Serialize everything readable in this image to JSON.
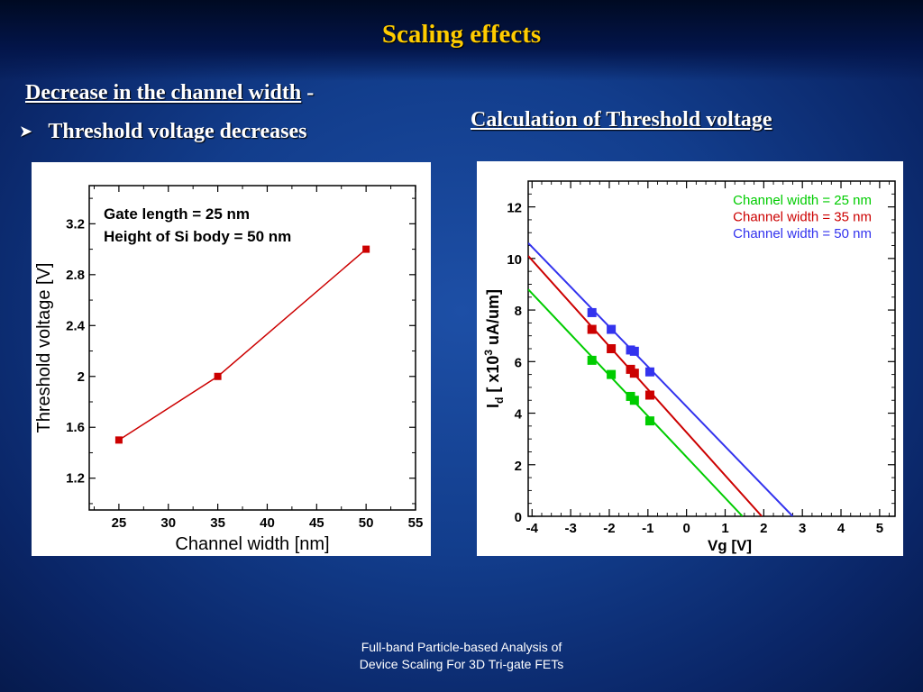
{
  "slide": {
    "title": "Scaling effects",
    "heading_left_underlined": "Decrease in the channel width",
    "heading_left_suffix": " -",
    "bullet_text": "Threshold voltage decreases",
    "heading_right": "Calculation of Threshold voltage",
    "footer_line1": "Full-band Particle-based Analysis of",
    "footer_line2": "Device Scaling For 3D Tri-gate FETs",
    "colors": {
      "background": "#123d8c",
      "title": "#ffcc00",
      "text": "#ffffff"
    }
  },
  "chart_data": [
    {
      "type": "line",
      "xlabel": "Channel width [nm]",
      "ylabel": "Threshold voltage [V]",
      "xlim": [
        22,
        55
      ],
      "ylim": [
        0.95,
        3.5
      ],
      "xticks": [
        25,
        30,
        35,
        40,
        45,
        50,
        55
      ],
      "yticks": [
        1.2,
        1.6,
        2,
        2.4,
        2.8,
        3.2
      ],
      "ytick_labels": [
        "1.2",
        "1.6",
        "2",
        "2.4",
        "2.8",
        "3.2"
      ],
      "annotations": [
        "Gate length = 25 nm",
        "Height of Si body = 50 nm"
      ],
      "grid": false,
      "series": [
        {
          "color": "#cc0000",
          "x": [
            25,
            35,
            50
          ],
          "y": [
            1.5,
            2.0,
            3.0
          ]
        }
      ]
    },
    {
      "type": "scatter",
      "xlabel": "Vg [V]",
      "ylabel_main": "I",
      "ylabel_sub": "d",
      "ylabel_mid": " [ x10",
      "ylabel_sup": "3",
      "ylabel_end": " uA/um]",
      "xlim": [
        -4.1,
        5.4
      ],
      "ylim": [
        0,
        13
      ],
      "xticks": [
        -4,
        -3,
        -2,
        -1,
        0,
        1,
        2,
        3,
        4,
        5
      ],
      "yticks": [
        0,
        2,
        4,
        6,
        8,
        10,
        12
      ],
      "grid": false,
      "legend_position": "top-right",
      "series": [
        {
          "name": "Channel width = 25 nm",
          "color": "#00cc00",
          "x": [
            -2.45,
            -1.95,
            -1.45,
            -1.35,
            -0.95
          ],
          "y": [
            6.05,
            5.5,
            4.65,
            4.5,
            3.7
          ],
          "fit": {
            "x": [
              -4.1,
              1.45
            ],
            "y": [
              8.8,
              0
            ]
          }
        },
        {
          "name": "Channel width = 35 nm",
          "color": "#cc0000",
          "x": [
            -2.45,
            -1.95,
            -1.45,
            -1.35,
            -0.95
          ],
          "y": [
            7.25,
            6.5,
            5.7,
            5.55,
            4.7
          ],
          "fit": {
            "x": [
              -4.1,
              1.95
            ],
            "y": [
              10.1,
              0
            ]
          }
        },
        {
          "name": "Channel width = 50 nm",
          "color": "#3333ee",
          "x": [
            -2.45,
            -1.95,
            -1.45,
            -1.35,
            -0.95
          ],
          "y": [
            7.9,
            7.25,
            6.45,
            6.4,
            5.6
          ],
          "fit": {
            "x": [
              -4.1,
              2.75
            ],
            "y": [
              10.6,
              0
            ]
          }
        }
      ]
    }
  ]
}
